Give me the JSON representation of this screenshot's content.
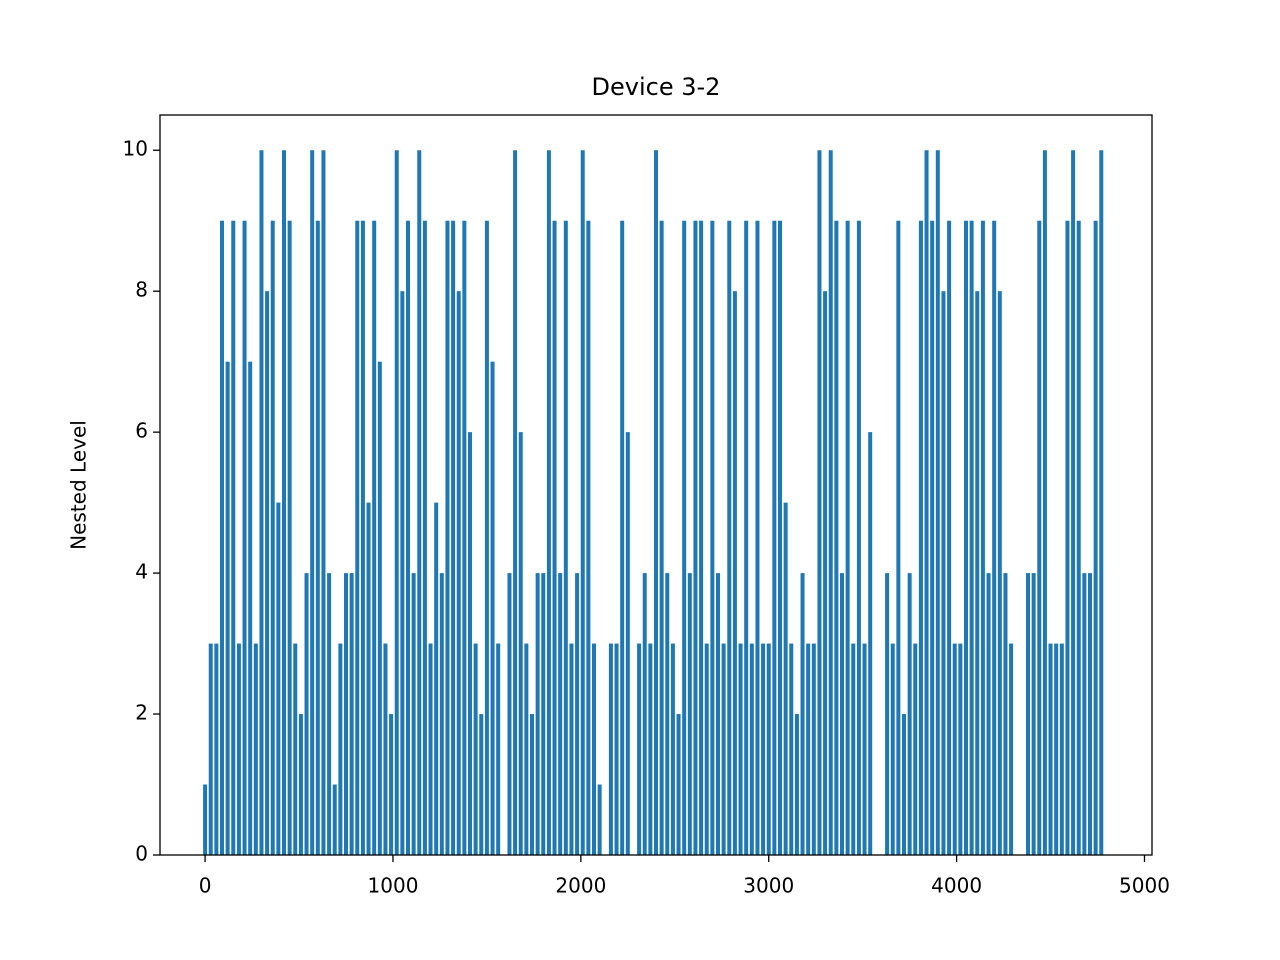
{
  "chart_data": {
    "type": "bar",
    "title": "Device 3-2",
    "ylabel": "Nested Level",
    "color": "#1f77b4",
    "x": [
      0,
      30,
      60,
      90,
      120,
      150,
      180,
      210,
      240,
      270,
      300,
      330,
      360,
      390,
      420,
      450,
      480,
      510,
      540,
      570,
      600,
      630,
      660,
      690,
      720,
      750,
      780,
      810,
      840,
      870,
      900,
      930,
      960,
      990,
      1020,
      1050,
      1080,
      1110,
      1140,
      1170,
      1200,
      1230,
      1260,
      1290,
      1320,
      1350,
      1380,
      1410,
      1440,
      1470,
      1500,
      1530,
      1560,
      1590,
      1620,
      1650,
      1680,
      1710,
      1740,
      1770,
      1800,
      1830,
      1860,
      1890,
      1920,
      1950,
      1980,
      2010,
      2040,
      2070,
      2100,
      2130,
      2160,
      2190,
      2220,
      2250,
      2280,
      2310,
      2340,
      2370,
      2400,
      2430,
      2460,
      2490,
      2520,
      2550,
      2580,
      2610,
      2640,
      2670,
      2700,
      2730,
      2760,
      2790,
      2820,
      2850,
      2880,
      2910,
      2940,
      2970,
      3000,
      3030,
      3060,
      3090,
      3120,
      3150,
      3180,
      3210,
      3240,
      3270,
      3300,
      3330,
      3360,
      3390,
      3420,
      3450,
      3480,
      3510,
      3540,
      3570,
      3600,
      3630,
      3660,
      3690,
      3720,
      3750,
      3780,
      3810,
      3840,
      3870,
      3900,
      3930,
      3960,
      3990,
      4020,
      4050,
      4080,
      4110,
      4140,
      4170,
      4200,
      4230,
      4260,
      4290,
      4320,
      4350,
      4380,
      4410,
      4440,
      4470,
      4500,
      4530,
      4560,
      4590,
      4620,
      4650,
      4680,
      4710,
      4740,
      4770
    ],
    "values": [
      1,
      3,
      3,
      9,
      7,
      9,
      3,
      9,
      7,
      3,
      10,
      8,
      9,
      5,
      10,
      9,
      3,
      2,
      4,
      10,
      9,
      10,
      4,
      1,
      3,
      4,
      4,
      9,
      9,
      5,
      9,
      7,
      3,
      2,
      10,
      8,
      9,
      4,
      10,
      9,
      3,
      5,
      4,
      9,
      9,
      8,
      9,
      6,
      3,
      2,
      9,
      7,
      3,
      0,
      4,
      10,
      6,
      3,
      2,
      4,
      4,
      10,
      9,
      4,
      9,
      3,
      4,
      10,
      9,
      3,
      1,
      0,
      3,
      3,
      9,
      6,
      0,
      3,
      4,
      3,
      10,
      9,
      4,
      3,
      2,
      9,
      4,
      9,
      9,
      3,
      9,
      4,
      3,
      9,
      8,
      3,
      9,
      3,
      9,
      3,
      3,
      9,
      9,
      5,
      3,
      2,
      4,
      3,
      3,
      10,
      8,
      10,
      9,
      4,
      9,
      3,
      9,
      3,
      6,
      0,
      0,
      4,
      3,
      9,
      2,
      4,
      3,
      9,
      10,
      9,
      10,
      8,
      9,
      3,
      3,
      9,
      9,
      8,
      9,
      4,
      9,
      8,
      4,
      3,
      0,
      0,
      4,
      4,
      9,
      10,
      3,
      3,
      3,
      9,
      10,
      9,
      4,
      4,
      9,
      10
    ],
    "xlim": [
      -240,
      5040
    ],
    "ylim": [
      0,
      10.5
    ],
    "xticks": [
      0,
      1000,
      2000,
      3000,
      4000,
      5000
    ],
    "yticks": [
      0,
      2,
      4,
      6,
      8,
      10
    ]
  }
}
